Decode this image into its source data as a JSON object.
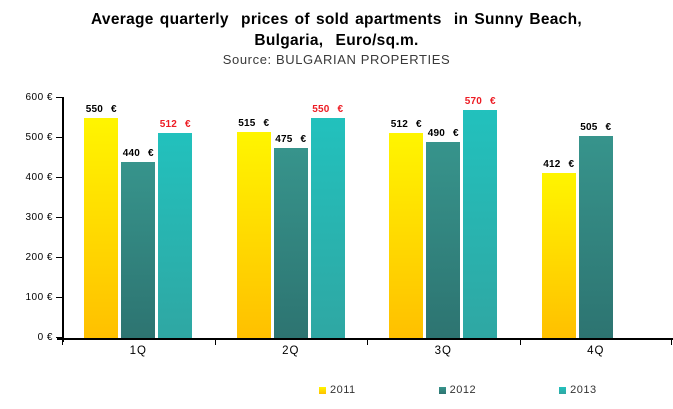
{
  "header": {
    "title_line1": "Average quarterly  prices of sold apartments  in Sunny Beach,",
    "title_line2": "Bulgaria,  Euro/sq.m.",
    "source": "Source: BULGARIAN PROPERTIES"
  },
  "chart_data": {
    "type": "bar",
    "title": "Average quarterly prices of sold apartments in Sunny Beach, Bulgaria, Euro/sq.m.",
    "subtitle": "Source: BULGARIAN PROPERTIES",
    "categories": [
      "1Q",
      "2Q",
      "3Q",
      "4Q"
    ],
    "series": [
      {
        "name": "2011",
        "values": [
          550,
          515,
          512,
          412
        ],
        "gradient": [
          "#FFF500",
          "#FFC000"
        ],
        "label_color": "#000000"
      },
      {
        "name": "2012",
        "values": [
          440,
          475,
          490,
          505
        ],
        "gradient": [
          "#37948C",
          "#2D7471"
        ],
        "label_color": "#000000"
      },
      {
        "name": "2013",
        "values": [
          512,
          550,
          570,
          null
        ],
        "gradient": [
          "#22C1BD",
          "#2FA7A3"
        ],
        "label_color": "#ED1C24"
      }
    ],
    "value_suffix": " €",
    "ylim": [
      0,
      600
    ],
    "ytick_step": 100,
    "yticks": [
      "0 €",
      "100 €",
      "200 €",
      "300 €",
      "400 €",
      "500 €",
      "600 €"
    ],
    "xlabel": "",
    "ylabel": "",
    "grid": false,
    "data_labels": true,
    "legend_position": "bottom"
  }
}
